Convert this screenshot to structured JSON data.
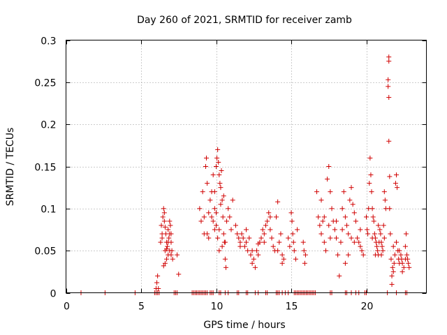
{
  "chart_data": {
    "type": "scatter",
    "title": "Day 260 of 2021, SRMTID for receiver zamb",
    "xlabel": "GPS time / hours",
    "ylabel": "SRMTID / TECUs",
    "xlim": [
      0,
      24
    ],
    "ylim": [
      0,
      0.3
    ],
    "xticks": [
      0,
      5,
      10,
      15,
      20
    ],
    "xtick_labels": [
      "0",
      "5",
      "10",
      "15",
      "20"
    ],
    "yticks": [
      0,
      0.05,
      0.1,
      0.15,
      0.2,
      0.25,
      0.3
    ],
    "ytick_labels": [
      "0",
      "0.05",
      "0.1",
      "0.15",
      "0.2",
      "0.25",
      "0.3"
    ],
    "grid": true,
    "marker": "+",
    "color": "#d00000",
    "series": [
      {
        "name": "SRMTID",
        "points": [
          [
            1.0,
            0
          ],
          [
            2.6,
            0
          ],
          [
            4.6,
            0
          ],
          [
            5.9,
            0
          ],
          [
            6.0,
            0
          ],
          [
            6.1,
            0
          ],
          [
            6.2,
            0
          ],
          [
            7.2,
            0
          ],
          [
            7.3,
            0
          ],
          [
            7.4,
            0
          ],
          [
            8.4,
            0
          ],
          [
            8.5,
            0
          ],
          [
            8.6,
            0
          ],
          [
            8.7,
            0
          ],
          [
            8.8,
            0
          ],
          [
            8.9,
            0
          ],
          [
            9.0,
            0
          ],
          [
            9.1,
            0
          ],
          [
            9.2,
            0
          ],
          [
            9.3,
            0
          ],
          [
            9.4,
            0
          ],
          [
            9.6,
            0
          ],
          [
            9.7,
            0
          ],
          [
            9.8,
            0
          ],
          [
            10.2,
            0
          ],
          [
            10.3,
            0
          ],
          [
            10.6,
            0
          ],
          [
            10.8,
            0
          ],
          [
            11.4,
            0
          ],
          [
            11.5,
            0
          ],
          [
            12.0,
            0
          ],
          [
            12.1,
            0
          ],
          [
            12.6,
            0
          ],
          [
            12.8,
            0
          ],
          [
            13.3,
            0
          ],
          [
            13.4,
            0
          ],
          [
            14.0,
            0
          ],
          [
            14.1,
            0
          ],
          [
            14.2,
            0
          ],
          [
            14.4,
            0
          ],
          [
            14.6,
            0
          ],
          [
            14.8,
            0
          ],
          [
            15.2,
            0
          ],
          [
            15.3,
            0
          ],
          [
            15.4,
            0
          ],
          [
            15.5,
            0
          ],
          [
            15.6,
            0
          ],
          [
            15.7,
            0
          ],
          [
            15.8,
            0
          ],
          [
            15.9,
            0
          ],
          [
            16.0,
            0
          ],
          [
            16.1,
            0
          ],
          [
            16.2,
            0
          ],
          [
            16.3,
            0
          ],
          [
            16.4,
            0
          ],
          [
            16.5,
            0
          ],
          [
            16.6,
            0
          ],
          [
            17.6,
            0
          ],
          [
            17.7,
            0
          ],
          [
            18.6,
            0
          ],
          [
            18.7,
            0
          ],
          [
            19.0,
            0
          ],
          [
            19.3,
            0
          ],
          [
            19.5,
            0
          ],
          [
            19.9,
            0
          ],
          [
            20.0,
            0
          ],
          [
            21.4,
            0
          ],
          [
            22.0,
            0
          ],
          [
            22.6,
            0
          ],
          [
            22.7,
            0
          ],
          [
            6.0,
            0.005
          ],
          [
            6.05,
            0.012
          ],
          [
            6.1,
            0.02
          ],
          [
            6.15,
            0.005
          ],
          [
            6.3,
            0.06
          ],
          [
            6.35,
            0.08
          ],
          [
            6.4,
            0.07
          ],
          [
            6.45,
            0.09
          ],
          [
            6.5,
            0.1
          ],
          [
            6.55,
            0.085
          ],
          [
            6.6,
            0.05
          ],
          [
            6.65,
            0.07
          ],
          [
            6.7,
            0.06
          ],
          [
            6.75,
            0.055
          ],
          [
            6.8,
            0.045
          ],
          [
            6.85,
            0.065
          ],
          [
            6.9,
            0.085
          ],
          [
            6.95,
            0.08
          ],
          [
            7.0,
            0.06
          ],
          [
            7.05,
            0.05
          ],
          [
            7.1,
            0.04
          ],
          [
            6.5,
            0.032
          ],
          [
            6.6,
            0.035
          ],
          [
            6.7,
            0.04
          ],
          [
            6.8,
            0.075
          ],
          [
            6.9,
            0.07
          ],
          [
            7.0,
            0.045
          ],
          [
            6.4,
            0.065
          ],
          [
            6.55,
            0.095
          ],
          [
            6.6,
            0.078
          ],
          [
            6.7,
            0.052
          ],
          [
            6.8,
            0.06
          ],
          [
            6.9,
            0.05
          ],
          [
            7.0,
            0.07
          ],
          [
            7.4,
            0.045
          ],
          [
            7.5,
            0.022
          ],
          [
            8.9,
            0.1
          ],
          [
            9.0,
            0.085
          ],
          [
            9.1,
            0.12
          ],
          [
            9.2,
            0.07
          ],
          [
            9.3,
            0.15
          ],
          [
            9.35,
            0.16
          ],
          [
            9.4,
            0.13
          ],
          [
            9.5,
            0.095
          ],
          [
            9.6,
            0.11
          ],
          [
            9.7,
            0.09
          ],
          [
            9.8,
            0.085
          ],
          [
            9.9,
            0.12
          ],
          [
            10.0,
            0.15
          ],
          [
            10.05,
            0.16
          ],
          [
            10.1,
            0.17
          ],
          [
            10.15,
            0.155
          ],
          [
            10.2,
            0.14
          ],
          [
            10.25,
            0.13
          ],
          [
            10.3,
            0.125
          ],
          [
            10.35,
            0.145
          ],
          [
            10.4,
            0.11
          ],
          [
            10.45,
            0.09
          ],
          [
            10.5,
            0.07
          ],
          [
            10.55,
            0.06
          ],
          [
            10.6,
            0.04
          ],
          [
            10.65,
            0.03
          ],
          [
            9.5,
            0.065
          ],
          [
            9.8,
            0.14
          ],
          [
            9.9,
            0.1
          ],
          [
            10.0,
            0.08
          ],
          [
            10.1,
            0.065
          ],
          [
            10.2,
            0.075
          ],
          [
            10.3,
            0.105
          ],
          [
            10.4,
            0.055
          ],
          [
            10.5,
            0.115
          ],
          [
            10.7,
            0.085
          ],
          [
            10.8,
            0.1
          ],
          [
            10.9,
            0.09
          ],
          [
            11.0,
            0.075
          ],
          [
            11.1,
            0.11
          ],
          [
            9.7,
            0.12
          ],
          [
            9.9,
            0.075
          ],
          [
            10.6,
            0.06
          ],
          [
            9.2,
            0.09
          ],
          [
            9.4,
            0.07
          ],
          [
            10.0,
            0.095
          ],
          [
            10.2,
            0.05
          ],
          [
            11.3,
            0.08
          ],
          [
            11.4,
            0.07
          ],
          [
            11.5,
            0.065
          ],
          [
            11.6,
            0.06
          ],
          [
            11.7,
            0.07
          ],
          [
            11.8,
            0.065
          ],
          [
            11.9,
            0.055
          ],
          [
            12.0,
            0.06
          ],
          [
            12.1,
            0.05
          ],
          [
            12.2,
            0.065
          ],
          [
            12.3,
            0.045
          ],
          [
            12.4,
            0.035
          ],
          [
            12.5,
            0.04
          ],
          [
            12.6,
            0.03
          ],
          [
            12.7,
            0.05
          ],
          [
            12.8,
            0.045
          ],
          [
            12.9,
            0.06
          ],
          [
            13.0,
            0.065
          ],
          [
            13.1,
            0.075
          ],
          [
            13.2,
            0.06
          ],
          [
            13.3,
            0.08
          ],
          [
            13.4,
            0.085
          ],
          [
            13.5,
            0.095
          ],
          [
            13.6,
            0.075
          ],
          [
            13.7,
            0.065
          ],
          [
            13.8,
            0.055
          ],
          [
            13.9,
            0.05
          ],
          [
            14.0,
            0.09
          ],
          [
            14.1,
            0.108
          ],
          [
            14.2,
            0.06
          ],
          [
            14.3,
            0.07
          ],
          [
            14.4,
            0.045
          ],
          [
            14.5,
            0.04
          ],
          [
            11.6,
            0.055
          ],
          [
            12.0,
            0.075
          ],
          [
            12.4,
            0.05
          ],
          [
            12.8,
            0.058
          ],
          [
            13.2,
            0.07
          ],
          [
            13.6,
            0.09
          ],
          [
            14.1,
            0.05
          ],
          [
            14.4,
            0.035
          ],
          [
            14.8,
            0.065
          ],
          [
            14.9,
            0.055
          ],
          [
            15.0,
            0.095
          ],
          [
            15.05,
            0.085
          ],
          [
            15.1,
            0.07
          ],
          [
            15.15,
            0.06
          ],
          [
            15.2,
            0.05
          ],
          [
            15.3,
            0.04
          ],
          [
            15.4,
            0.075
          ],
          [
            15.8,
            0.06
          ],
          [
            15.85,
            0.05
          ],
          [
            15.9,
            0.035
          ],
          [
            15.95,
            0.045
          ],
          [
            16.7,
            0.12
          ],
          [
            16.8,
            0.09
          ],
          [
            16.9,
            0.08
          ],
          [
            17.0,
            0.07
          ],
          [
            17.1,
            0.085
          ],
          [
            17.2,
            0.06
          ],
          [
            17.3,
            0.05
          ],
          [
            17.4,
            0.135
          ],
          [
            17.5,
            0.15
          ],
          [
            17.6,
            0.12
          ],
          [
            17.7,
            0.1
          ],
          [
            17.8,
            0.085
          ],
          [
            17.9,
            0.075
          ],
          [
            18.0,
            0.065
          ],
          [
            18.1,
            0.045
          ],
          [
            18.2,
            0.02
          ],
          [
            18.3,
            0.06
          ],
          [
            18.4,
            0.1
          ],
          [
            18.5,
            0.12
          ],
          [
            18.6,
            0.09
          ],
          [
            18.7,
            0.08
          ],
          [
            18.8,
            0.07
          ],
          [
            18.9,
            0.11
          ],
          [
            19.0,
            0.125
          ],
          [
            19.1,
            0.105
          ],
          [
            19.2,
            0.095
          ],
          [
            19.3,
            0.085
          ],
          [
            19.4,
            0.065
          ],
          [
            19.5,
            0.06
          ],
          [
            19.6,
            0.055
          ],
          [
            19.7,
            0.05
          ],
          [
            19.8,
            0.045
          ],
          [
            17.2,
            0.09
          ],
          [
            17.6,
            0.065
          ],
          [
            18.0,
            0.085
          ],
          [
            18.4,
            0.075
          ],
          [
            18.8,
            0.045
          ],
          [
            19.2,
            0.06
          ],
          [
            19.6,
            0.075
          ],
          [
            17.0,
            0.11
          ],
          [
            17.5,
            0.08
          ],
          [
            18.6,
            0.035
          ],
          [
            19.0,
            0.065
          ],
          [
            20.0,
            0.09
          ],
          [
            20.05,
            0.075
          ],
          [
            20.1,
            0.07
          ],
          [
            20.15,
            0.1
          ],
          [
            20.2,
            0.13
          ],
          [
            20.25,
            0.16
          ],
          [
            20.3,
            0.14
          ],
          [
            20.35,
            0.12
          ],
          [
            20.4,
            0.1
          ],
          [
            20.45,
            0.09
          ],
          [
            20.5,
            0.085
          ],
          [
            20.55,
            0.07
          ],
          [
            20.6,
            0.065
          ],
          [
            20.65,
            0.06
          ],
          [
            20.7,
            0.055
          ],
          [
            20.75,
            0.05
          ],
          [
            20.8,
            0.045
          ],
          [
            20.85,
            0.06
          ],
          [
            20.9,
            0.075
          ],
          [
            20.95,
            0.07
          ],
          [
            21.0,
            0.06
          ],
          [
            21.05,
            0.055
          ],
          [
            21.1,
            0.05
          ],
          [
            21.15,
            0.08
          ],
          [
            21.2,
            0.12
          ],
          [
            21.25,
            0.11
          ],
          [
            21.3,
            0.1
          ],
          [
            20.4,
            0.065
          ],
          [
            20.6,
            0.045
          ],
          [
            20.8,
            0.08
          ],
          [
            21.0,
            0.045
          ],
          [
            21.2,
            0.065
          ],
          [
            21.5,
            0.28
          ],
          [
            21.5,
            0.275
          ],
          [
            21.45,
            0.253
          ],
          [
            21.45,
            0.245
          ],
          [
            21.5,
            0.232
          ],
          [
            21.5,
            0.18
          ],
          [
            21.55,
            0.138
          ],
          [
            21.55,
            0.1
          ],
          [
            21.6,
            0.07
          ],
          [
            21.65,
            0.04
          ],
          [
            21.7,
            0.02
          ],
          [
            21.75,
            0.03
          ],
          [
            21.8,
            0.025
          ],
          [
            21.85,
            0.035
          ],
          [
            21.9,
            0.045
          ],
          [
            21.95,
            0.13
          ],
          [
            22.0,
            0.14
          ],
          [
            22.05,
            0.125
          ],
          [
            22.1,
            0.05
          ],
          [
            22.15,
            0.04
          ],
          [
            22.2,
            0.035
          ],
          [
            22.3,
            0.045
          ],
          [
            22.35,
            0.04
          ],
          [
            22.4,
            0.035
          ],
          [
            22.5,
            0.03
          ],
          [
            22.6,
            0.055
          ],
          [
            22.65,
            0.07
          ],
          [
            22.7,
            0.045
          ],
          [
            22.75,
            0.04
          ],
          [
            22.8,
            0.035
          ],
          [
            22.85,
            0.03
          ],
          [
            21.7,
            0.01
          ],
          [
            21.8,
            0.055
          ],
          [
            22.0,
            0.06
          ],
          [
            22.2,
            0.05
          ],
          [
            22.4,
            0.025
          ],
          [
            22.6,
            0.04
          ]
        ]
      }
    ]
  }
}
